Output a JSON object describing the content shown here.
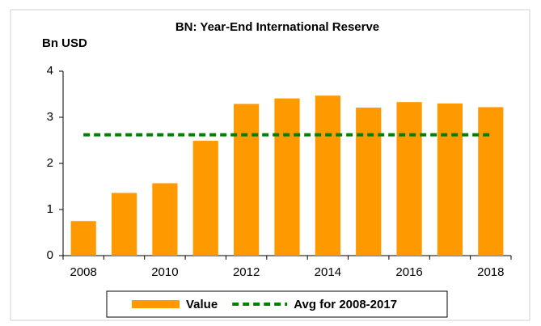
{
  "chart_data": {
    "type": "bar",
    "title": "BN: Year-End International Reserve",
    "y_label": "Bn USD",
    "categories": [
      "2008",
      null,
      "2010",
      null,
      "2012",
      null,
      "2014",
      null,
      "2016",
      null,
      "2018"
    ],
    "series": [
      {
        "name": "Value",
        "type": "bar",
        "color": "#ff9900",
        "values": [
          0.75,
          1.36,
          1.57,
          2.49,
          3.29,
          3.41,
          3.47,
          3.21,
          3.33,
          3.3,
          3.22
        ]
      },
      {
        "name": "Avg for 2008-2017",
        "type": "line",
        "dashed": true,
        "color": "#008000",
        "values": [
          2.62,
          2.62,
          2.62,
          2.62,
          2.62,
          2.62,
          2.62,
          2.62,
          2.62,
          2.62,
          2.62
        ]
      }
    ],
    "ylim": [
      0,
      4
    ],
    "yticks": [
      0,
      1,
      2,
      3,
      4
    ],
    "grid": false,
    "legend": "bottom"
  }
}
